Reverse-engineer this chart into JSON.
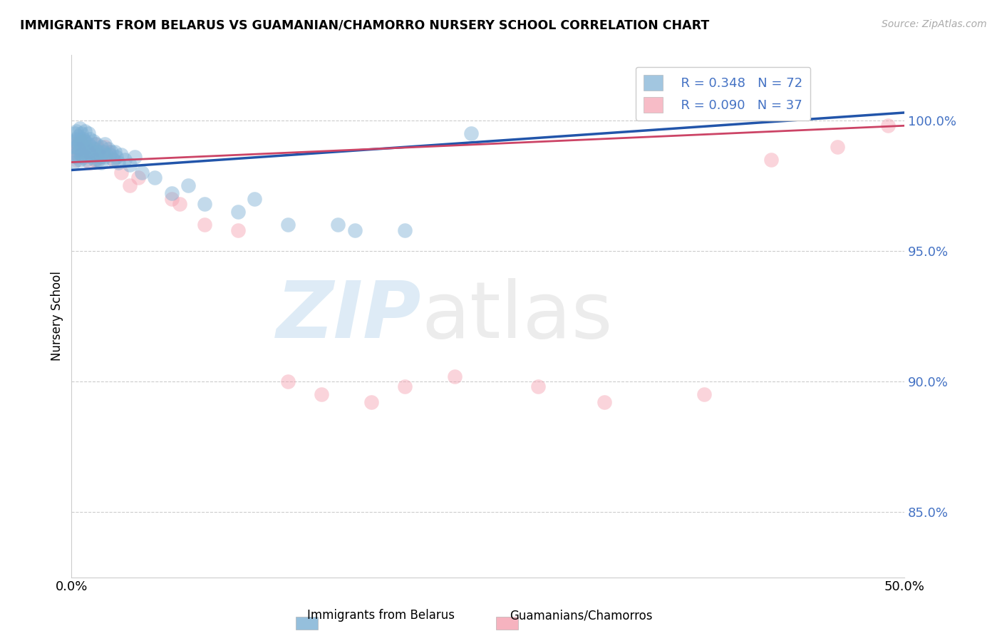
{
  "title": "IMMIGRANTS FROM BELARUS VS GUAMANIAN/CHAMORRO NURSERY SCHOOL CORRELATION CHART",
  "source": "Source: ZipAtlas.com",
  "ylabel": "Nursery School",
  "ytick_labels": [
    "85.0%",
    "90.0%",
    "95.0%",
    "100.0%"
  ],
  "ytick_values": [
    0.85,
    0.9,
    0.95,
    1.0
  ],
  "xlim": [
    0.0,
    0.5
  ],
  "ylim": [
    0.825,
    1.025
  ],
  "legend_blue_r": "R = 0.348",
  "legend_blue_n": "N = 72",
  "legend_pink_r": "R = 0.090",
  "legend_pink_n": "N = 37",
  "legend_label_blue": "Immigrants from Belarus",
  "legend_label_pink": "Guamanians/Chamorros",
  "blue_color": "#7bafd4",
  "pink_color": "#f4a0b0",
  "blue_line_color": "#2255aa",
  "pink_line_color": "#cc4466",
  "blue_scatter_x": [
    0.001,
    0.001,
    0.002,
    0.002,
    0.002,
    0.003,
    0.003,
    0.003,
    0.003,
    0.004,
    0.004,
    0.004,
    0.005,
    0.005,
    0.005,
    0.005,
    0.006,
    0.006,
    0.006,
    0.007,
    0.007,
    0.007,
    0.008,
    0.008,
    0.008,
    0.009,
    0.009,
    0.01,
    0.01,
    0.01,
    0.011,
    0.011,
    0.012,
    0.012,
    0.013,
    0.013,
    0.014,
    0.014,
    0.015,
    0.015,
    0.016,
    0.016,
    0.017,
    0.018,
    0.018,
    0.019,
    0.02,
    0.02,
    0.021,
    0.022,
    0.023,
    0.024,
    0.025,
    0.026,
    0.027,
    0.028,
    0.03,
    0.032,
    0.035,
    0.038,
    0.042,
    0.05,
    0.06,
    0.07,
    0.08,
    0.1,
    0.11,
    0.13,
    0.16,
    0.17,
    0.2,
    0.24
  ],
  "blue_scatter_y": [
    0.984,
    0.99,
    0.987,
    0.992,
    0.995,
    0.986,
    0.99,
    0.993,
    0.996,
    0.988,
    0.991,
    0.994,
    0.985,
    0.989,
    0.992,
    0.997,
    0.987,
    0.991,
    0.995,
    0.986,
    0.99,
    0.993,
    0.988,
    0.992,
    0.996,
    0.985,
    0.989,
    0.987,
    0.991,
    0.995,
    0.988,
    0.993,
    0.986,
    0.99,
    0.988,
    0.992,
    0.985,
    0.989,
    0.987,
    0.991,
    0.985,
    0.988,
    0.986,
    0.99,
    0.984,
    0.988,
    0.986,
    0.991,
    0.987,
    0.989,
    0.987,
    0.988,
    0.985,
    0.988,
    0.986,
    0.984,
    0.987,
    0.985,
    0.983,
    0.986,
    0.98,
    0.978,
    0.972,
    0.975,
    0.968,
    0.965,
    0.97,
    0.96,
    0.96,
    0.958,
    0.958,
    0.995
  ],
  "pink_scatter_x": [
    0.001,
    0.002,
    0.003,
    0.004,
    0.005,
    0.006,
    0.007,
    0.008,
    0.009,
    0.01,
    0.011,
    0.012,
    0.014,
    0.015,
    0.016,
    0.018,
    0.02,
    0.022,
    0.025,
    0.03,
    0.035,
    0.04,
    0.06,
    0.065,
    0.08,
    0.1,
    0.13,
    0.15,
    0.18,
    0.2,
    0.23,
    0.28,
    0.32,
    0.38,
    0.42,
    0.46,
    0.49
  ],
  "pink_scatter_y": [
    0.988,
    0.991,
    0.985,
    0.989,
    0.993,
    0.987,
    0.992,
    0.986,
    0.99,
    0.988,
    0.984,
    0.987,
    0.991,
    0.985,
    0.989,
    0.986,
    0.99,
    0.988,
    0.985,
    0.98,
    0.975,
    0.978,
    0.97,
    0.968,
    0.96,
    0.958,
    0.9,
    0.895,
    0.892,
    0.898,
    0.902,
    0.898,
    0.892,
    0.895,
    0.985,
    0.99,
    0.998
  ],
  "blue_trend_x": [
    0.0,
    0.5
  ],
  "blue_trend_y": [
    0.981,
    1.003
  ],
  "pink_trend_x": [
    0.0,
    0.5
  ],
  "pink_trend_y": [
    0.984,
    0.998
  ]
}
